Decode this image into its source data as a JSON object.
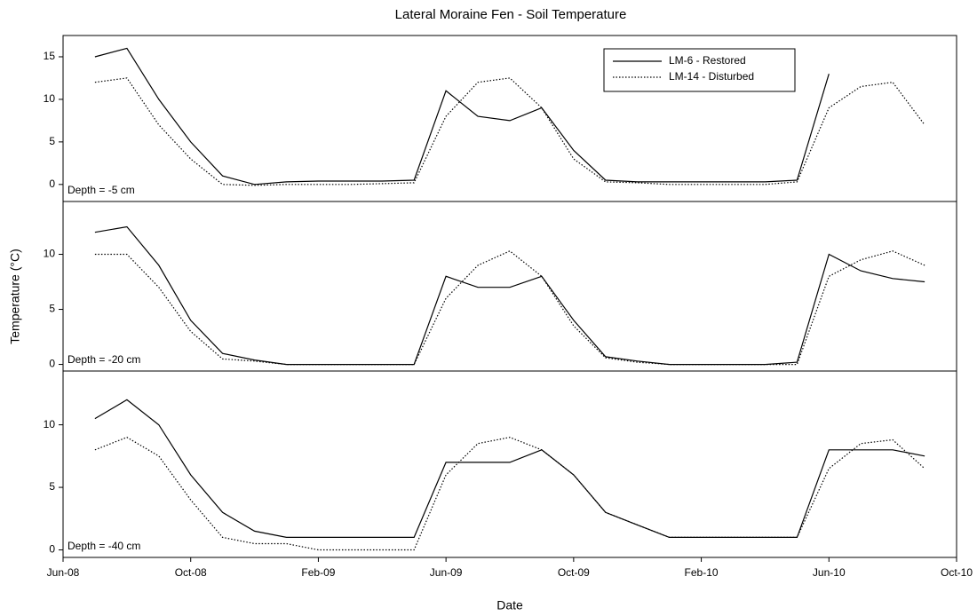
{
  "title": "Lateral Moraine Fen - Soil Temperature",
  "xlabel": "Date",
  "ylabel": "Temperature (°C)",
  "chart_data": [
    {
      "type": "line",
      "annotation": "Depth = -5 cm",
      "x": [
        "2008-07",
        "2008-08",
        "2008-09",
        "2008-10",
        "2008-11",
        "2008-12",
        "2009-01",
        "2009-02",
        "2009-03",
        "2009-04",
        "2009-05",
        "2009-06",
        "2009-07",
        "2009-08",
        "2009-09",
        "2009-10",
        "2009-11",
        "2009-12",
        "2010-01",
        "2010-02",
        "2010-03",
        "2010-04",
        "2010-05",
        "2010-06",
        "2010-07",
        "2010-08",
        "2010-09"
      ],
      "series": [
        {
          "name": "LM-6 - Restored",
          "color": "#000000",
          "style": "solid",
          "values": [
            15,
            16,
            10,
            5,
            1,
            0,
            0.3,
            0.4,
            0.4,
            0.4,
            0.5,
            11,
            8,
            7.5,
            9,
            4,
            0.5,
            0.3,
            0.3,
            0.3,
            0.3,
            0.3,
            0.5,
            13,
            null,
            null,
            null
          ]
        },
        {
          "name": "LM-14 - Disturbed",
          "color": "#000000",
          "style": "dotted",
          "values": [
            12,
            12.5,
            7,
            3,
            0,
            -0.1,
            0,
            0,
            0,
            0.1,
            0.2,
            8,
            12,
            12.5,
            9,
            3,
            0.3,
            0.2,
            0,
            0,
            0,
            0,
            0.3,
            9,
            11.5,
            12,
            7
          ]
        }
      ],
      "xlim": [
        "2008-06",
        "2010-10"
      ],
      "ylim": [
        -2,
        17.5
      ],
      "yticks": [
        0,
        5,
        10,
        15
      ]
    },
    {
      "type": "line",
      "annotation": "Depth = -20 cm",
      "x": [
        "2008-07",
        "2008-08",
        "2008-09",
        "2008-10",
        "2008-11",
        "2008-12",
        "2009-01",
        "2009-02",
        "2009-03",
        "2009-04",
        "2009-05",
        "2009-06",
        "2009-07",
        "2009-08",
        "2009-09",
        "2009-10",
        "2009-11",
        "2009-12",
        "2010-01",
        "2010-02",
        "2010-03",
        "2010-04",
        "2010-05",
        "2010-06",
        "2010-07",
        "2010-08",
        "2010-09"
      ],
      "series": [
        {
          "color": "#000000",
          "style": "solid",
          "values": [
            12,
            12.5,
            9,
            4,
            1,
            0.4,
            0,
            0,
            0,
            0,
            0,
            8,
            7,
            7,
            8,
            4,
            0.7,
            0.3,
            0,
            0,
            0,
            0,
            0.2,
            10,
            8.5,
            7.8,
            7.5
          ]
        },
        {
          "color": "#000000",
          "style": "dotted",
          "values": [
            10,
            10,
            7,
            3,
            0.5,
            0.3,
            0,
            0,
            0,
            0,
            0,
            6,
            9,
            10.3,
            8,
            3.5,
            0.6,
            0.2,
            0,
            0,
            0,
            0,
            0,
            8,
            9.5,
            10.3,
            9
          ]
        }
      ],
      "xlim": [
        "2008-06",
        "2010-10"
      ],
      "ylim": [
        -0.6,
        14.8
      ],
      "yticks": [
        0,
        5,
        10
      ]
    },
    {
      "type": "line",
      "annotation": "Depth = -40 cm",
      "x": [
        "2008-07",
        "2008-08",
        "2008-09",
        "2008-10",
        "2008-11",
        "2008-12",
        "2009-01",
        "2009-02",
        "2009-03",
        "2009-04",
        "2009-05",
        "2009-06",
        "2009-07",
        "2009-08",
        "2009-09",
        "2009-10",
        "2009-11",
        "2009-12",
        "2010-01",
        "2010-02",
        "2010-03",
        "2010-04",
        "2010-05",
        "2010-06",
        "2010-07",
        "2010-08",
        "2010-09"
      ],
      "series": [
        {
          "color": "#000000",
          "style": "solid",
          "values": [
            10.5,
            12,
            10,
            6,
            3,
            1.5,
            1,
            1,
            1,
            1,
            1,
            7,
            7,
            7,
            8,
            6,
            3,
            2,
            1,
            1,
            1,
            1,
            1,
            8,
            8,
            8,
            7.5
          ]
        },
        {
          "color": "#000000",
          "style": "dotted",
          "values": [
            8,
            9,
            7.5,
            4,
            1,
            0.5,
            0.5,
            0,
            0,
            0,
            0,
            6,
            8.5,
            9,
            8,
            6,
            3,
            2,
            1,
            1,
            1,
            1,
            1,
            6.5,
            8.5,
            8.8,
            6.5
          ]
        }
      ],
      "xlim": [
        "2008-06",
        "2010-10"
      ],
      "ylim": [
        -0.6,
        14.3
      ],
      "yticks": [
        0,
        5,
        10
      ],
      "xticks": [
        {
          "value": "2008-06",
          "label": "Jun-08"
        },
        {
          "value": "2008-10",
          "label": "Oct-08"
        },
        {
          "value": "2009-02",
          "label": "Feb-09"
        },
        {
          "value": "2009-06",
          "label": "Jun-09"
        },
        {
          "value": "2009-10",
          "label": "Oct-09"
        },
        {
          "value": "2010-02",
          "label": "Feb-10"
        },
        {
          "value": "2010-06",
          "label": "Jun-10"
        },
        {
          "value": "2010-10",
          "label": "Oct-10"
        }
      ]
    }
  ]
}
